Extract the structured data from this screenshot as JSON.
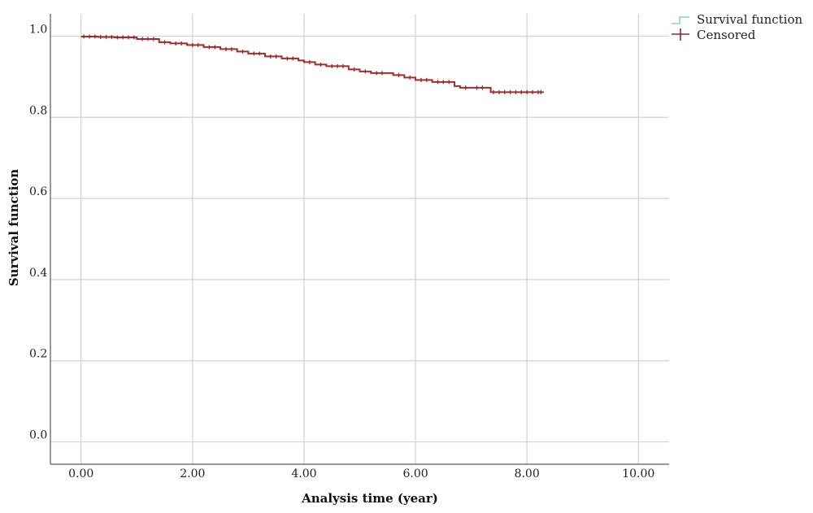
{
  "chart_data": {
    "type": "line",
    "xlabel": "Analysis time (year)",
    "ylabel": "Survival function",
    "xlim": [
      -0.55,
      10.55
    ],
    "ylim": [
      -0.055,
      1.055
    ],
    "x_ticks": [
      0,
      2,
      4,
      6,
      8,
      10
    ],
    "x_tick_labels": [
      "0.00",
      "2.00",
      "4.00",
      "6.00",
      "8.00",
      "10.00"
    ],
    "y_ticks": [
      0,
      0.2,
      0.4,
      0.6,
      0.8,
      1.0
    ],
    "y_tick_labels": [
      "0.0",
      "0.2",
      "0.4",
      "0.6",
      "0.8",
      "1.0"
    ],
    "grid": true,
    "legend_position": "top-right",
    "legend": [
      {
        "label": "Survival function",
        "color": "#7fdcc4",
        "symbol": "step"
      },
      {
        "label": "Censored",
        "color": "#9b2335",
        "symbol": "plus"
      }
    ],
    "series": [
      {
        "name": "Survival function",
        "color": "#a52a2a",
        "step": true,
        "x": [
          0.0,
          0.3,
          0.6,
          1.0,
          1.4,
          1.6,
          1.9,
          2.2,
          2.5,
          2.8,
          3.0,
          3.3,
          3.6,
          3.9,
          4.0,
          4.2,
          4.4,
          4.8,
          5.0,
          5.2,
          5.5,
          5.6,
          5.8,
          6.0,
          6.3,
          6.7,
          6.8,
          7.0,
          7.3,
          7.35,
          8.3
        ],
        "y": [
          0.999,
          0.998,
          0.997,
          0.993,
          0.985,
          0.982,
          0.978,
          0.973,
          0.968,
          0.962,
          0.957,
          0.95,
          0.945,
          0.94,
          0.936,
          0.93,
          0.926,
          0.918,
          0.913,
          0.909,
          0.909,
          0.904,
          0.898,
          0.892,
          0.887,
          0.877,
          0.873,
          0.873,
          0.873,
          0.862,
          0.862
        ]
      }
    ],
    "censored": {
      "x": [
        0.05,
        0.15,
        0.25,
        0.35,
        0.45,
        0.55,
        0.65,
        0.75,
        0.85,
        0.95,
        1.1,
        1.2,
        1.3,
        1.5,
        1.7,
        1.8,
        2.0,
        2.1,
        2.3,
        2.4,
        2.6,
        2.7,
        2.9,
        3.1,
        3.2,
        3.4,
        3.5,
        3.7,
        3.8,
        4.1,
        4.3,
        4.5,
        4.6,
        4.7,
        4.9,
        5.1,
        5.3,
        5.4,
        5.7,
        5.9,
        6.1,
        6.2,
        6.4,
        6.5,
        6.6,
        6.9,
        7.1,
        7.2,
        7.4,
        7.5,
        7.6,
        7.7,
        7.8,
        7.9,
        8.0,
        8.1,
        8.2,
        8.25
      ],
      "y": [
        0.999,
        0.999,
        0.999,
        0.998,
        0.998,
        0.998,
        0.997,
        0.997,
        0.997,
        0.997,
        0.993,
        0.993,
        0.993,
        0.985,
        0.982,
        0.982,
        0.978,
        0.978,
        0.973,
        0.973,
        0.968,
        0.968,
        0.962,
        0.957,
        0.957,
        0.95,
        0.95,
        0.945,
        0.945,
        0.936,
        0.93,
        0.926,
        0.926,
        0.926,
        0.918,
        0.913,
        0.909,
        0.909,
        0.904,
        0.898,
        0.892,
        0.892,
        0.887,
        0.887,
        0.887,
        0.873,
        0.873,
        0.873,
        0.862,
        0.862,
        0.862,
        0.862,
        0.862,
        0.862,
        0.862,
        0.862,
        0.862,
        0.862
      ]
    }
  }
}
